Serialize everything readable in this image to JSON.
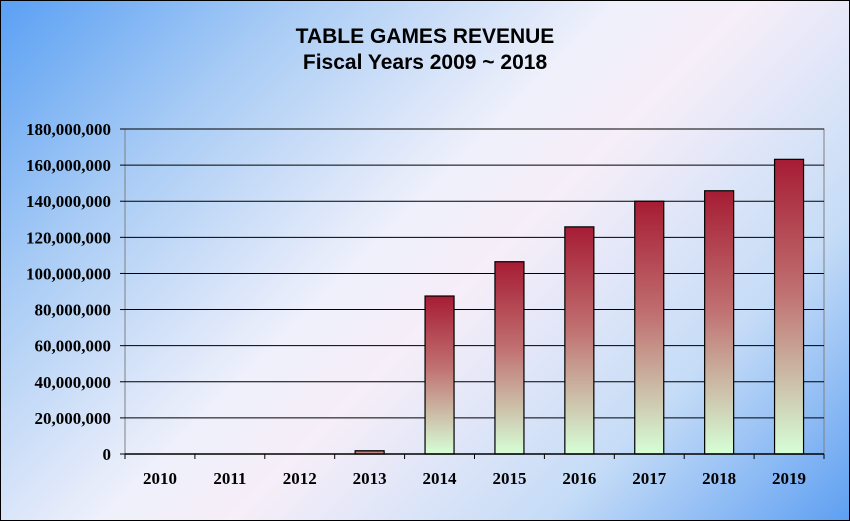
{
  "chart_data": {
    "type": "bar",
    "title": "TABLE GAMES REVENUE",
    "subtitle": "Fiscal Years 2009 ~ 2018",
    "xlabel": "",
    "ylabel": "",
    "categories": [
      "2010",
      "2011",
      "2012",
      "2013",
      "2014",
      "2015",
      "2016",
      "2017",
      "2018",
      "2019"
    ],
    "values": [
      0,
      0,
      0,
      1800000,
      87500000,
      106500000,
      125800000,
      140000000,
      145800000,
      163200000
    ],
    "ylim": [
      0,
      180000000
    ],
    "yticks": [
      "0",
      "20,000,000",
      "40,000,000",
      "60,000,000",
      "80,000,000",
      "100,000,000",
      "120,000,000",
      "140,000,000",
      "160,000,000",
      "180,000,000"
    ],
    "grid": true,
    "legend": "none",
    "colors": {
      "bar_top": "#a61c34",
      "bar_mid": "#c07070",
      "bar_bottom": "#d6ffd6",
      "gridline": "#000000"
    }
  }
}
